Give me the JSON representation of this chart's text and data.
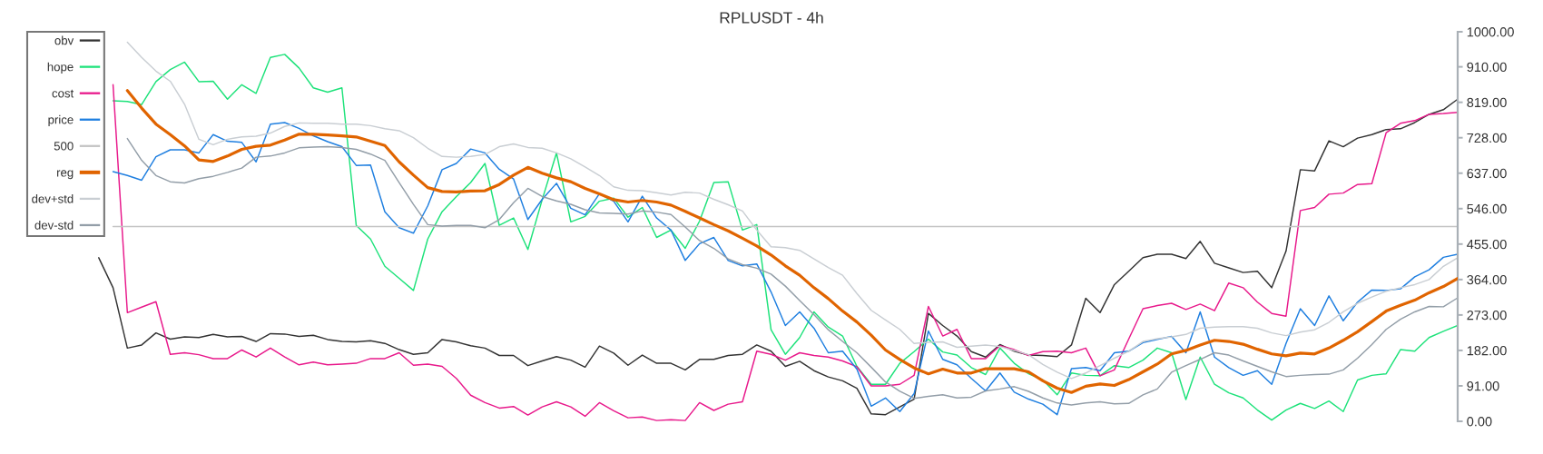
{
  "chart_data": {
    "type": "line",
    "title": "RPLUSDT - 4h",
    "categories": [
      null,
      null,
      null,
      null,
      null,
      null,
      null,
      null,
      null,
      null,
      null,
      null,
      null,
      null,
      null,
      null,
      null,
      null,
      null,
      null,
      null,
      null,
      null,
      null,
      null,
      null,
      null,
      null,
      null,
      null,
      null,
      null,
      null,
      null,
      null,
      null,
      null,
      null,
      null,
      null,
      null,
      null,
      null,
      null,
      null,
      null,
      null,
      null,
      null,
      null,
      null,
      null,
      null,
      null,
      null,
      null,
      null,
      null,
      null,
      null,
      null,
      null,
      null,
      null,
      null,
      null,
      null,
      null,
      null,
      null,
      null,
      null,
      null,
      null,
      null,
      null,
      null,
      null,
      null,
      null,
      null,
      null,
      null,
      null,
      null,
      null,
      null,
      null,
      null,
      null,
      null,
      null,
      null,
      null,
      null,
      null,
      null,
      null,
      null,
      null,
      null
    ],
    "series": [
      {
        "name": "obv",
        "color": "#333333",
        "values": [
          null,
          null,
          null,
          null,
          null,
          420,
          343,
          188,
          196,
          227,
          211,
          217,
          215,
          223,
          217,
          218,
          205,
          225,
          224,
          218,
          221,
          210,
          205,
          204,
          207,
          200,
          184,
          172,
          176,
          210,
          204,
          194,
          188,
          169,
          169,
          143,
          155,
          166,
          157,
          139,
          193,
          175,
          144,
          170,
          149,
          149,
          132,
          159,
          159,
          169,
          172,
          196,
          180,
          141,
          154,
          130,
          114,
          104,
          85,
          19,
          17,
          37,
          57,
          277,
          246,
          219,
          179,
          165,
          197,
          180,
          170,
          169,
          166,
          196,
          316,
          279,
          351,
          385,
          420,
          429,
          429,
          418,
          462,
          406,
          394,
          382,
          385,
          343,
          437,
          646,
          643,
          720,
          705,
          727,
          736,
          749,
          751,
          767,
          788,
          800,
          827
        ]
      },
      {
        "name": "hope",
        "color": "#1de27a",
        "values": [
          null,
          null,
          null,
          null,
          null,
          null,
          823,
          821,
          813,
          872,
          903,
          922,
          872,
          873,
          827,
          864,
          842,
          934,
          942,
          907,
          856,
          845,
          856,
          503,
          468,
          398,
          367,
          336,
          468,
          538,
          577,
          613,
          662,
          503,
          522,
          441,
          569,
          689,
          512,
          526,
          565,
          573,
          524,
          549,
          472,
          491,
          444,
          514,
          613,
          615,
          491,
          505,
          235,
          172,
          215,
          281,
          242,
          219,
          141,
          95,
          95,
          149,
          179,
          211,
          178,
          170,
          138,
          120,
          188,
          149,
          122,
          106,
          68,
          124,
          118,
          117,
          143,
          138,
          157,
          188,
          176,
          56,
          165,
          95,
          73,
          60,
          29,
          3,
          29,
          46,
          33,
          52,
          25,
          106,
          118,
          122,
          184,
          180,
          215,
          231,
          246
        ]
      },
      {
        "name": "cost",
        "color": "#e8198b",
        "values": [
          null,
          null,
          null,
          null,
          null,
          null,
          864,
          279,
          293,
          307,
          172,
          176,
          171,
          161,
          161,
          183,
          165,
          188,
          165,
          145,
          152,
          145,
          147,
          149,
          161,
          161,
          176,
          144,
          147,
          141,
          110,
          67,
          48,
          34,
          38,
          16,
          37,
          50,
          37,
          13,
          48,
          27,
          9,
          11,
          2,
          4,
          2,
          48,
          28,
          44,
          50,
          180,
          172,
          157,
          176,
          169,
          165,
          155,
          140,
          91,
          91,
          95,
          118,
          295,
          219,
          236,
          161,
          161,
          194,
          184,
          169,
          179,
          180,
          176,
          188,
          117,
          132,
          211,
          289,
          297,
          303,
          287,
          301,
          284,
          355,
          343,
          306,
          277,
          270,
          541,
          549,
          583,
          586,
          608,
          610,
          741,
          765,
          772,
          788,
          790,
          793
        ]
      },
      {
        "name": "price",
        "color": "#1f7fe0",
        "values": [
          null,
          null,
          null,
          null,
          null,
          null,
          641,
          631,
          619,
          679,
          697,
          697,
          689,
          736,
          719,
          716,
          666,
          763,
          767,
          752,
          733,
          718,
          705,
          657,
          658,
          538,
          497,
          483,
          553,
          646,
          662,
          699,
          689,
          647,
          622,
          518,
          570,
          611,
          547,
          530,
          584,
          565,
          512,
          578,
          522,
          491,
          413,
          456,
          472,
          413,
          399,
          404,
          332,
          246,
          281,
          239,
          176,
          180,
          134,
          39,
          60,
          25,
          71,
          232,
          159,
          145,
          110,
          78,
          124,
          75,
          57,
          44,
          17,
          135,
          138,
          130,
          176,
          180,
          202,
          210,
          218,
          176,
          281,
          165,
          138,
          118,
          130,
          95,
          200,
          289,
          246,
          322,
          258,
          306,
          337,
          336,
          340,
          371,
          389,
          421,
          429
        ]
      },
      {
        "name": "500",
        "color": "#c4c4c4",
        "values": [
          null,
          null,
          null,
          null,
          null,
          null,
          500,
          500,
          500,
          500,
          500,
          500,
          500,
          500,
          500,
          500,
          500,
          500,
          500,
          500,
          500,
          500,
          500,
          500,
          500,
          500,
          500,
          500,
          500,
          500,
          500,
          500,
          500,
          500,
          500,
          500,
          500,
          500,
          500,
          500,
          500,
          500,
          500,
          500,
          500,
          500,
          500,
          500,
          500,
          500,
          500,
          500,
          500,
          500,
          500,
          500,
          500,
          500,
          500,
          500,
          500,
          500,
          500,
          500,
          500,
          500,
          500,
          500,
          500,
          500,
          500,
          500,
          500,
          500,
          500,
          500,
          500,
          500,
          500,
          500,
          500,
          500,
          500,
          500,
          500,
          500,
          500,
          500,
          500,
          500,
          500,
          500,
          500,
          500,
          500,
          500,
          500,
          500,
          500,
          500,
          500
        ]
      },
      {
        "name": "reg",
        "color": "#e06400",
        "values": [
          null,
          null,
          null,
          null,
          null,
          null,
          null,
          849,
          804,
          763,
          736,
          707,
          671,
          667,
          681,
          698,
          706,
          709,
          722,
          737,
          737,
          735,
          733,
          730,
          719,
          708,
          666,
          632,
          600,
          590,
          589,
          591,
          592,
          608,
          632,
          652,
          637,
          625,
          615,
          598,
          584,
          569,
          563,
          567,
          563,
          555,
          539,
          522,
          505,
          489,
          470,
          450,
          427,
          399,
          375,
          343,
          315,
          283,
          255,
          221,
          183,
          159,
          137,
          122,
          134,
          124,
          124,
          135,
          135,
          135,
          127,
          104,
          85,
          74,
          90,
          96,
          92,
          107,
          127,
          147,
          173,
          182,
          196,
          208,
          205,
          198,
          185,
          173,
          168,
          175,
          173,
          188,
          208,
          230,
          256,
          283,
          298,
          311,
          330,
          346,
          367
        ]
      },
      {
        "name": "dev+std",
        "color": "#c9ced3",
        "values": [
          null,
          null,
          null,
          null,
          null,
          null,
          null,
          973,
          934,
          899,
          873,
          814,
          724,
          710,
          724,
          730,
          732,
          740,
          757,
          766,
          765,
          765,
          763,
          763,
          759,
          751,
          746,
          728,
          701,
          680,
          678,
          680,
          685,
          705,
          712,
          703,
          701,
          689,
          674,
          653,
          631,
          602,
          593,
          592,
          587,
          581,
          588,
          586,
          570,
          556,
          540,
          491,
          448,
          446,
          439,
          417,
          395,
          375,
          328,
          285,
          260,
          236,
          200,
          203,
          204,
          190,
          193,
          196,
          192,
          182,
          171,
          146,
          126,
          110,
          124,
          143,
          162,
          180,
          205,
          212,
          217,
          223,
          239,
          242,
          243,
          243,
          239,
          227,
          220,
          229,
          235,
          254,
          281,
          303,
          319,
          334,
          343,
          351,
          364,
          398,
          420
        ]
      },
      {
        "name": "dev-std",
        "color": "#939ea8",
        "values": [
          null,
          null,
          null,
          null,
          null,
          null,
          null,
          726,
          670,
          631,
          615,
          612,
          623,
          629,
          639,
          650,
          678,
          681,
          689,
          702,
          704,
          705,
          703,
          698,
          686,
          670,
          613,
          557,
          505,
          501,
          503,
          503,
          497,
          518,
          561,
          598,
          577,
          566,
          557,
          543,
          535,
          534,
          532,
          540,
          537,
          531,
          499,
          464,
          444,
          417,
          402,
          393,
          378,
          347,
          310,
          274,
          235,
          205,
          176,
          139,
          101,
          77,
          59,
          64,
          68,
          60,
          62,
          78,
          83,
          89,
          77,
          60,
          47,
          42,
          47,
          50,
          45,
          46,
          68,
          83,
          126,
          143,
          159,
          176,
          170,
          155,
          141,
          127,
          115,
          118,
          120,
          121,
          132,
          162,
          197,
          236,
          262,
          281,
          295,
          294,
          317
        ]
      }
    ],
    "ylim": [
      0,
      1000
    ],
    "yticks": [
      {
        "value": 0,
        "label": "0.00"
      },
      {
        "value": 91,
        "label": "91.00"
      },
      {
        "value": 182,
        "label": "182.00"
      },
      {
        "value": 273,
        "label": "273.00"
      },
      {
        "value": 364,
        "label": "364.00"
      },
      {
        "value": 455,
        "label": "455.00"
      },
      {
        "value": 546,
        "label": "546.00"
      },
      {
        "value": 637,
        "label": "637.00"
      },
      {
        "value": 728,
        "label": "728.00"
      },
      {
        "value": 819,
        "label": "819.00"
      },
      {
        "value": 910,
        "label": "910.00"
      },
      {
        "value": 1000,
        "label": "1000.00"
      }
    ],
    "legend": "top left",
    "tick_labels": "y"
  }
}
